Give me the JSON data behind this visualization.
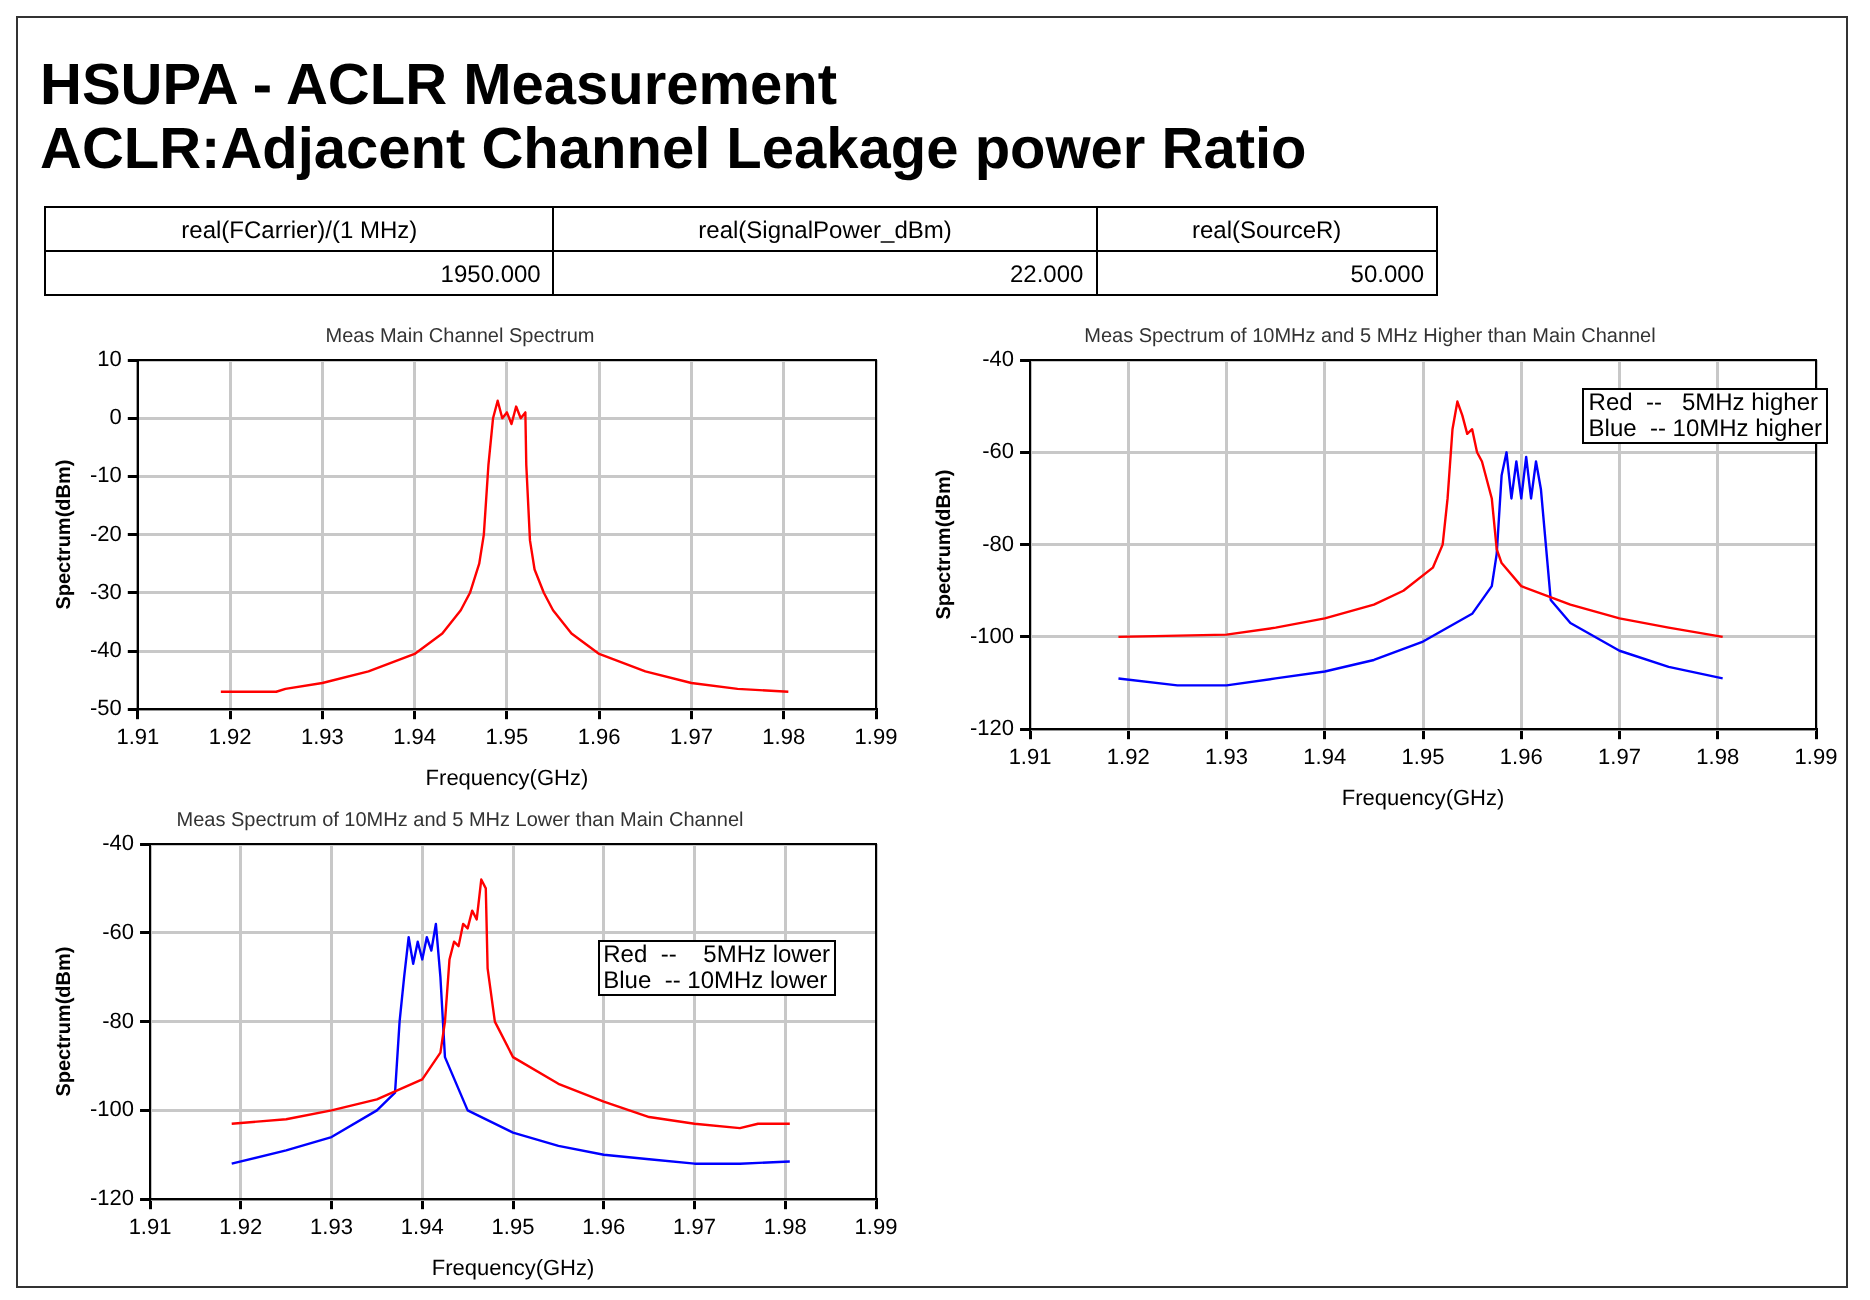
{
  "chart_data": [
    {
      "type": "other",
      "title": "HSUPA - ACLR Measurement",
      "subtitle": "ACLR:Adjacent Channel Leakage power Ratio",
      "annotations": [
        "real(FCarrier)/(1 MHz)",
        "real(SignalPower_dBm)",
        "real(SourceR)",
        "1950.000",
        "22.000",
        "50.000"
      ]
    },
    {
      "type": "line",
      "title": "Meas Main Channel Spectrum",
      "xlabel": "Frequency(GHz)",
      "ylabel": "Spectrum(dBm)",
      "xlim": [
        1.91,
        1.99
      ],
      "xticks": [
        1.91,
        1.92,
        1.93,
        1.94,
        1.95,
        1.96,
        1.97,
        1.98,
        1.99
      ],
      "ylim": [
        -50,
        10
      ],
      "yticks": [
        -50,
        -40,
        -30,
        -20,
        -10,
        0,
        10
      ],
      "grid": true,
      "series": [
        {
          "color": "#ff0000",
          "x": [
            1.919,
            1.925,
            1.926,
            1.93,
            1.935,
            1.94,
            1.943,
            1.945,
            1.946,
            1.947,
            1.9475,
            1.948,
            1.9485,
            1.949,
            1.9495,
            1.95,
            1.9505,
            1.951,
            1.9515,
            1.952,
            1.9521,
            1.9525,
            1.953,
            1.954,
            1.955,
            1.957,
            1.96,
            1.965,
            1.97,
            1.975,
            1.9805
          ],
          "values": [
            -47,
            -47,
            -46.5,
            -45.5,
            -43.5,
            -40.5,
            -37,
            -33,
            -30,
            -25,
            -20,
            -8,
            0,
            3,
            0,
            1,
            -1,
            2,
            0,
            1,
            -8,
            -21,
            -26,
            -30,
            -33,
            -37,
            -40.5,
            -43.5,
            -45.5,
            -46.5,
            -47
          ]
        }
      ]
    },
    {
      "type": "line",
      "title": "Meas Spectrum of 10MHz and 5 MHz Higher than Main Channel",
      "xlabel": "Frequency(GHz)",
      "ylabel": "Spectrum(dBm)",
      "xlim": [
        1.91,
        1.99
      ],
      "xticks": [
        1.91,
        1.92,
        1.93,
        1.94,
        1.95,
        1.96,
        1.97,
        1.98,
        1.99
      ],
      "ylim": [
        -120,
        -40
      ],
      "yticks": [
        -120,
        -100,
        -80,
        -60,
        -40
      ],
      "grid": true,
      "annotations": [
        "Red  --   5MHz higher",
        "Blue  -- 10MHz higher"
      ],
      "series": [
        {
          "color": "#ff0000",
          "x": [
            1.919,
            1.93,
            1.935,
            1.94,
            1.945,
            1.948,
            1.951,
            1.952,
            1.9525,
            1.953,
            1.9535,
            1.954,
            1.9545,
            1.955,
            1.9555,
            1.956,
            1.9565,
            1.957,
            1.9575,
            1.958,
            1.96,
            1.965,
            1.97,
            1.975,
            1.9805
          ],
          "values": [
            -100,
            -99.5,
            -98,
            -96,
            -93,
            -90,
            -85,
            -80,
            -70,
            -55,
            -49,
            -52,
            -56,
            -55,
            -60,
            -62,
            -66,
            -70,
            -81,
            -84,
            -89,
            -93,
            -96,
            -98,
            -100
          ]
        },
        {
          "color": "#0000ff",
          "x": [
            1.919,
            1.925,
            1.93,
            1.935,
            1.94,
            1.945,
            1.95,
            1.955,
            1.957,
            1.9575,
            1.958,
            1.9585,
            1.959,
            1.9595,
            1.96,
            1.9605,
            1.961,
            1.9615,
            1.962,
            1.9625,
            1.963,
            1.965,
            1.97,
            1.975,
            1.9805
          ],
          "values": [
            -109,
            -110.5,
            -110.5,
            -109,
            -107.5,
            -105,
            -101,
            -95,
            -89,
            -82,
            -65,
            -60,
            -70,
            -62,
            -70,
            -61,
            -70,
            -62,
            -68,
            -80,
            -92,
            -97,
            -103,
            -106.5,
            -109
          ]
        }
      ]
    },
    {
      "type": "line",
      "title": "Meas Spectrum of 10MHz and 5 MHz Lower than Main Channel",
      "xlabel": "Frequency(GHz)",
      "ylabel": "Spectrum(dBm)",
      "xlim": [
        1.91,
        1.99
      ],
      "xticks": [
        1.91,
        1.92,
        1.93,
        1.94,
        1.95,
        1.96,
        1.97,
        1.98,
        1.99
      ],
      "ylim": [
        -120,
        -40
      ],
      "yticks": [
        -120,
        -100,
        -80,
        -60,
        -40
      ],
      "grid": true,
      "annotations": [
        "Red  --    5MHz lower",
        "Blue  -- 10MHz lower"
      ],
      "series": [
        {
          "color": "#ff0000",
          "x": [
            1.919,
            1.925,
            1.93,
            1.935,
            1.94,
            1.942,
            1.9425,
            1.943,
            1.9435,
            1.944,
            1.9445,
            1.945,
            1.9455,
            1.946,
            1.9465,
            1.947,
            1.9472,
            1.948,
            1.95,
            1.955,
            1.96,
            1.965,
            1.97,
            1.975,
            1.977,
            1.9805
          ],
          "values": [
            -103,
            -102,
            -100,
            -97.5,
            -93,
            -87,
            -80,
            -66,
            -62,
            -63,
            -58,
            -59,
            -55,
            -57,
            -48,
            -50,
            -68,
            -80,
            -88,
            -94,
            -98,
            -101.5,
            -103,
            -104,
            -103,
            -103
          ]
        },
        {
          "color": "#0000ff",
          "x": [
            1.919,
            1.925,
            1.93,
            1.935,
            1.937,
            1.9375,
            1.938,
            1.9385,
            1.939,
            1.9395,
            1.94,
            1.9405,
            1.941,
            1.9415,
            1.942,
            1.9425,
            1.945,
            1.95,
            1.955,
            1.96,
            1.965,
            1.97,
            1.975,
            1.9805
          ],
          "values": [
            -112,
            -109,
            -106,
            -100,
            -96,
            -80,
            -70,
            -61,
            -67,
            -62,
            -66,
            -61,
            -64,
            -58,
            -70,
            -88,
            -100,
            -105,
            -108,
            -110,
            -111,
            -112,
            -112,
            -111.5
          ]
        }
      ]
    }
  ]
}
